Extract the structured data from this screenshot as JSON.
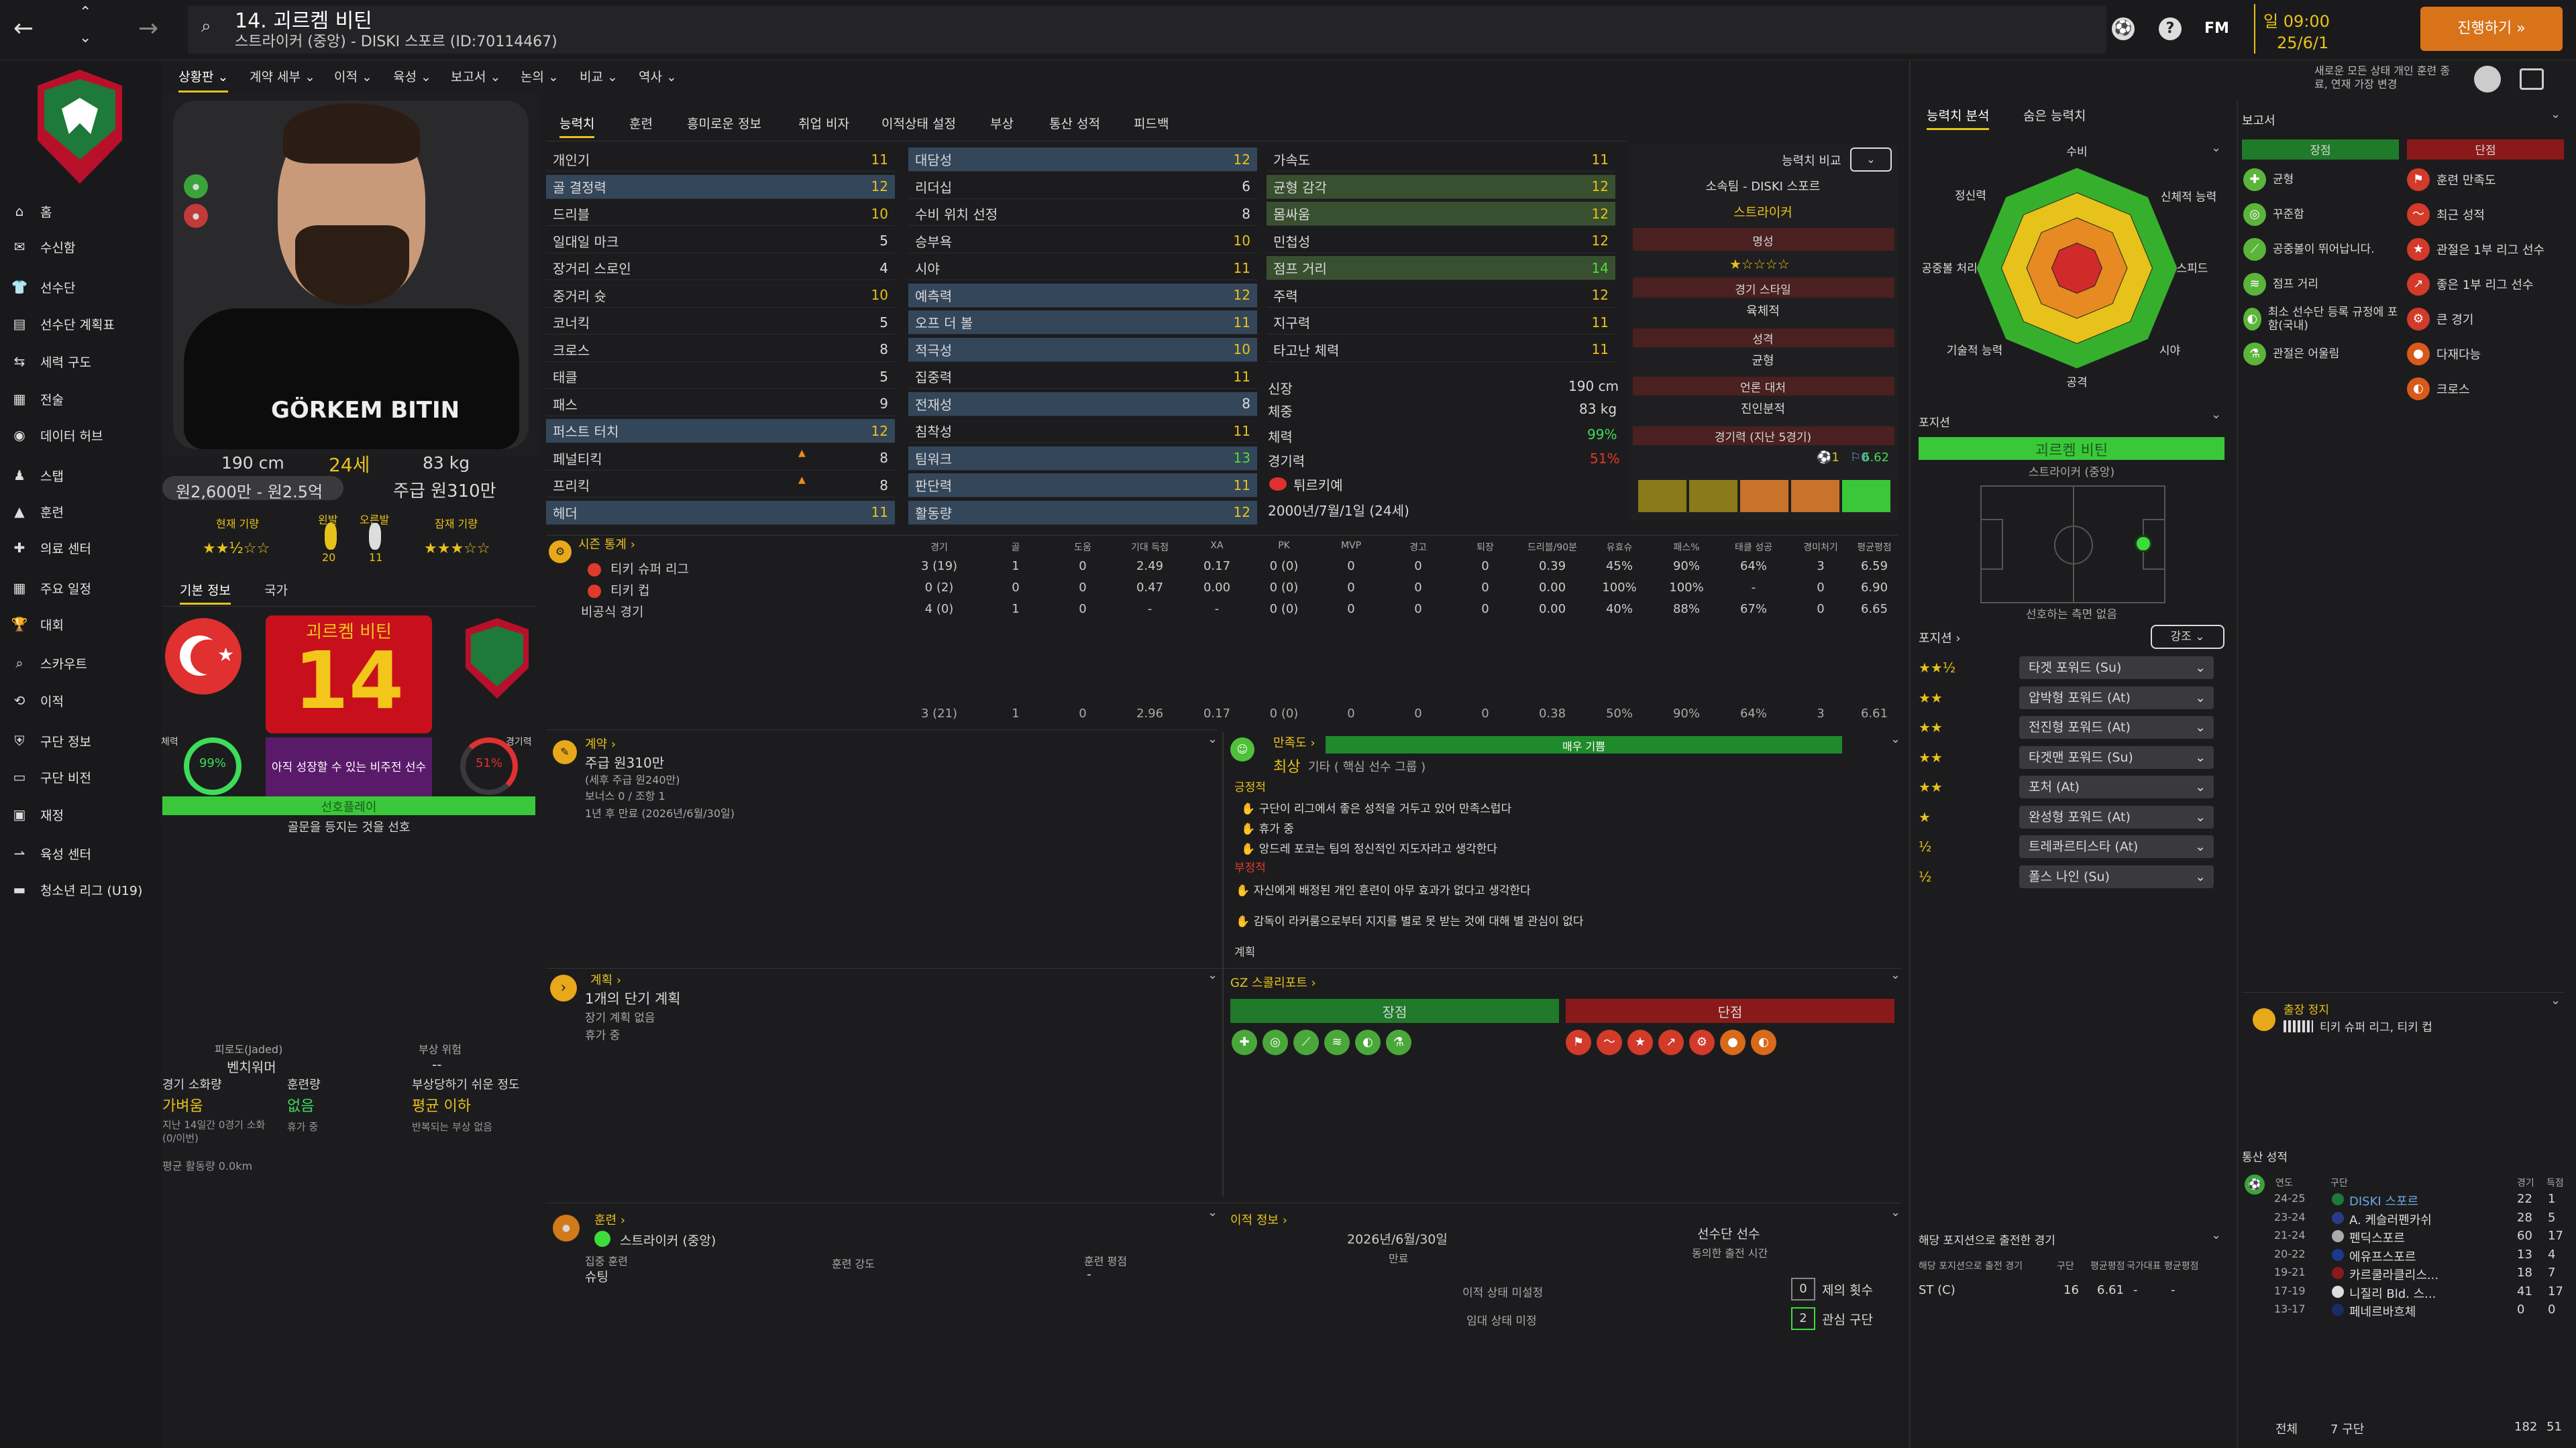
{
  "topbar": {
    "title": "14. 괴르켐 비틴",
    "subtitle": "스트라이커 (중앙) - DISKI 스포르 (ID:70114467)",
    "time": "일 09:00",
    "date": "25/6/1",
    "continue": "진행하기",
    "fm_label": "FM",
    "notice": "새로운 모든 상태 개인 훈련 종료, 연재 가장 변경"
  },
  "sidebar": {
    "items": [
      {
        "label": "홈",
        "icon": "home-icon"
      },
      {
        "label": "수신함",
        "icon": "inbox-icon"
      },
      {
        "label": "선수단",
        "icon": "squad-icon"
      },
      {
        "label": "선수단 계획표",
        "icon": "plan-icon"
      },
      {
        "label": "세력 구도",
        "icon": "dynamics-icon"
      },
      {
        "label": "전술",
        "icon": "tactics-icon"
      },
      {
        "label": "데이터 허브",
        "icon": "data-icon"
      },
      {
        "label": "스탭",
        "icon": "staff-icon"
      },
      {
        "label": "훈련",
        "icon": "training-icon"
      },
      {
        "label": "의료 센터",
        "icon": "medical-icon"
      },
      {
        "label": "주요 일정",
        "icon": "calendar-icon"
      },
      {
        "label": "대회",
        "icon": "trophy-icon"
      },
      {
        "label": "스카우트",
        "icon": "scout-icon"
      },
      {
        "label": "이적",
        "icon": "transfer-icon"
      },
      {
        "label": "구단 정보",
        "icon": "club-icon"
      },
      {
        "label": "구단 비전",
        "icon": "vision-icon"
      },
      {
        "label": "재정",
        "icon": "finance-icon"
      },
      {
        "label": "육성 센터",
        "icon": "youth-icon"
      },
      {
        "label": "청소년 리그 (U19)",
        "icon": "u19-icon"
      }
    ]
  },
  "nav": [
    "상황판",
    "계약 세부",
    "이적",
    "육성",
    "보고서",
    "논의",
    "비교",
    "역사"
  ],
  "profile": {
    "height": "190 cm",
    "age": "24세",
    "weight": "83 kg",
    "value": "원2,600만 - 원2.5억",
    "wage": "주급 원310만",
    "current_ability": "현재 기량",
    "potential": "잠재 기량",
    "right_foot": "오른발",
    "left_foot": "왼발",
    "right_foot_val": "11",
    "left_foot_val": "20",
    "shirt_name": "GÖRKEM BITIN",
    "tabs": [
      "기본 정보",
      "국가"
    ],
    "card_name": "괴르켐 비틴",
    "card_number": "14",
    "fitness": "99%",
    "fitness_label": "체력",
    "match_load": "51%",
    "match_load_label": "경기력",
    "card_note": "아직 성장할 수 있는 비주전 선수",
    "role_label": "선호플레이",
    "pref": "골문을 등지는 것을 선호"
  },
  "side_stats": {
    "jaded_label": "피로도(Jaded)",
    "jaded_val": "벤치워머",
    "injury_label": "부상 위험",
    "injury_val": "--",
    "match_label": "경기 소화량",
    "match_val": "가벼움",
    "match_sub": "지난 14일간 0경기 소화(0/이번)",
    "training_label": "훈련량",
    "training_val": "없음",
    "training_sub": "휴가 중",
    "injury2_label": "부상당하기 쉬운 정도",
    "injury2_val": "평균 이하",
    "injury2_sub": "반복되는 부상 없음",
    "distance": "평균 활동량 0.0km"
  },
  "tabs": [
    "능력치",
    "훈련",
    "흥미로운 정보",
    "취업 비자",
    "이적상태 설정",
    "부상",
    "통산 성적",
    "피드백"
  ],
  "tech": [
    [
      "개인기",
      "11"
    ],
    [
      "골 결정력",
      "12"
    ],
    [
      "드리블",
      "10"
    ],
    [
      "일대일 마크",
      "5"
    ],
    [
      "장거리 스로인",
      "4"
    ],
    [
      "중거리 슛",
      "10"
    ],
    [
      "코너킥",
      "5"
    ],
    [
      "크로스",
      "8"
    ],
    [
      "태클",
      "5"
    ],
    [
      "패스",
      "9"
    ],
    [
      "퍼스트 터치",
      "12"
    ],
    [
      "페널티킥",
      "8"
    ],
    [
      "프리킥",
      "8"
    ],
    [
      "헤더",
      "11"
    ]
  ],
  "mental": [
    [
      "대담성",
      "12"
    ],
    [
      "리더십",
      "6"
    ],
    [
      "수비 위치 선정",
      "8"
    ],
    [
      "승부욕",
      "10"
    ],
    [
      "시야",
      "11"
    ],
    [
      "예측력",
      "12"
    ],
    [
      "오프 더 볼",
      "11"
    ],
    [
      "적극성",
      "10"
    ],
    [
      "집중력",
      "11"
    ],
    [
      "전재성",
      "8"
    ],
    [
      "침착성",
      "11"
    ],
    [
      "팀워크",
      "13"
    ],
    [
      "판단력",
      "11"
    ],
    [
      "활동량",
      "12"
    ]
  ],
  "physical": [
    [
      "가속도",
      "11"
    ],
    [
      "균형 감각",
      "12"
    ],
    [
      "몸싸움",
      "12"
    ],
    [
      "민첩성",
      "12"
    ],
    [
      "점프 거리",
      "14"
    ],
    [
      "주력",
      "12"
    ],
    [
      "지구력",
      "11"
    ],
    [
      "타고난 체력",
      "11"
    ]
  ],
  "bio": {
    "height_label": "신장",
    "height": "190 cm",
    "weight_label": "체중",
    "weight": "83 kg",
    "fitness_label": "체력",
    "fitness": "99%",
    "match_label": "경기력",
    "match": "51%",
    "nation": "튀르키예",
    "dob": "2000년/7월/1일 (24세)"
  },
  "compare": {
    "btn": "능력치 비교",
    "club": "소속팀 - DISKI 스포르",
    "pos": "스트라이커",
    "rep_label": "명성",
    "style_label": "경기 스타일",
    "style": "육체적",
    "pers_label": "성격",
    "pers": "균형",
    "media_label": "언론 대처",
    "media": "진인분적",
    "recent_label": "경기력 (지난 5경기)",
    "recent_goals": "1",
    "recent_assists": "0",
    "recent_avg": "6.62"
  },
  "season": {
    "header": "시즌 통계",
    "cols": [
      "경기",
      "골",
      "도움",
      "기대 득점",
      "XA",
      "PK",
      "MVP",
      "경고",
      "퇴장",
      "드리블/90분",
      "유효슈",
      "패스%",
      "태클 성공",
      "경미처기",
      "평균평점"
    ],
    "rows": [
      {
        "name": "티키 슈퍼 리그",
        "vals": [
          "3 (19)",
          "1",
          "0",
          "2.49",
          "0.17",
          "0 (0)",
          "0",
          "0",
          "0",
          "0.39",
          "45%",
          "90%",
          "64%",
          "3",
          "6.59"
        ]
      },
      {
        "name": "티키 컵",
        "vals": [
          "0 (2)",
          "0",
          "0",
          "0.47",
          "0.00",
          "0 (0)",
          "0",
          "0",
          "0",
          "0.00",
          "100%",
          "100%",
          "-",
          "0",
          "6.90"
        ]
      },
      {
        "name": "비공식 경기",
        "vals": [
          "4 (0)",
          "1",
          "0",
          "-",
          "-",
          "0 (0)",
          "0",
          "0",
          "0",
          "0.00",
          "40%",
          "88%",
          "67%",
          "0",
          "6.65"
        ]
      }
    ],
    "total": [
      "3 (21)",
      "1",
      "0",
      "2.96",
      "0.17",
      "0 (0)",
      "0",
      "0",
      "0",
      "0.38",
      "50%",
      "90%",
      "64%",
      "3",
      "6.61"
    ]
  },
  "contract": {
    "header": "계약",
    "wage": "주급 원310만",
    "wage_sub": "(세후 주급 원240만)",
    "bonus": "보너스 0 / 조항 1",
    "expiry": "1년 후 만료 (2026년/6월/30일)"
  },
  "happiness": {
    "header": "만족도",
    "status": "매우 기쁨",
    "role": "최상",
    "role_sub": "기타 ( 핵심 선수 그룹 )",
    "pos_label": "긍정적",
    "positives": [
      "구단이 리그에서 좋은 성적을 거두고 있어 만족스럽다",
      "휴가 중",
      "앙드레 포코는 팀의 정신적인 지도자라고 생각한다"
    ],
    "neg_label": "부정적",
    "negatives": [
      "자신에게 배정된 개인 훈련이 아무 효과가 없다고 생각한다",
      "감독이 라커룸으로부터 지지를 별로 못 받는 것에 대해 별 관심이 없다"
    ],
    "footer": "계획"
  },
  "plans": {
    "header": "계획",
    "short": "1개의 단기 계획",
    "long": "장기 계획 없음",
    "holiday": "휴가 중"
  },
  "scout": {
    "header": "GZ 스콜리포트",
    "pros": "장점",
    "cons": "단점"
  },
  "training": {
    "header": "훈련",
    "pos": "스트라이커 (중앙)",
    "focus_label": "집중 훈련",
    "focus": "슈팅",
    "intensity_label": "훈련 강도",
    "rating_label": "훈련 평점",
    "rating": "-"
  },
  "transfer": {
    "header": "이적 정보",
    "date": "2026년/6월/30일",
    "expiry": "만료",
    "status": "선수단 선수",
    "status_sub": "동의한 출전 시간",
    "not_set": "이적 상태 미설정",
    "not_set2": "임대 상태 미정",
    "offers": "제의 횟수",
    "offers_val": "0",
    "interest": "관심 구단",
    "interest_val": "2"
  },
  "analysis": {
    "tabs": [
      "능력치 분석",
      "숨은 능력치"
    ],
    "labels": [
      "수비",
      "신체적 능력",
      "스피드",
      "시야",
      "공격",
      "기술적 능력",
      "공중볼 처리",
      "정신력"
    ],
    "values": [
      0.35,
      0.6,
      0.62,
      0.5,
      0.7,
      0.55,
      0.65,
      0.6
    ]
  },
  "position": {
    "header": "포지션",
    "name": "괴르켐 비틴",
    "role": "스트라이커 (중앙)",
    "pref": "선호하는 측면 없음",
    "roles_header": "포지션",
    "strong": "강조",
    "roles": [
      {
        "name": "타겟 포워드 (Su)",
        "stars": "★★½"
      },
      {
        "name": "압박형 포워드 (At)",
        "stars": "★★"
      },
      {
        "name": "전진형 포워드 (At)",
        "stars": "★★"
      },
      {
        "name": "타겟맨 포워드 (Su)",
        "stars": "★★"
      },
      {
        "name": "포처 (At)",
        "stars": "★★"
      },
      {
        "name": "완성형 포워드 (At)",
        "stars": "★"
      },
      {
        "name": "트레콰르티스타 (At)",
        "stars": "½"
      },
      {
        "name": "폴스 나인 (Su)",
        "stars": "½"
      }
    ],
    "played_header": "해당 포지션으로 출전한 경기",
    "played_cols": [
      "해당 포지션으로 출전 경기",
      "구단",
      "평균평점",
      "국가대표",
      "평균평점"
    ],
    "played_row": [
      "ST (C)",
      "16",
      "6.61",
      "-",
      "-"
    ]
  },
  "report": {
    "header": "보고서",
    "pros": "장점",
    "cons": "단점",
    "pros_items": [
      {
        "t": "균형",
        "c": "#5bb53a"
      },
      {
        "t": "꾸준함",
        "c": "#5bb53a"
      },
      {
        "t": "공중볼이 뛰어납니다.",
        "c": "#5bb53a"
      },
      {
        "t": "점프 거리",
        "c": "#5bb53a"
      },
      {
        "t": "최소 선수단 등록 규정에 포함(국내)",
        "c": "#5bb53a"
      },
      {
        "t": "관절은 어울림",
        "c": "#5bb53a"
      }
    ],
    "cons_items": [
      {
        "t": "훈련 만족도",
        "c": "#d23a2a"
      },
      {
        "t": "최근 성적",
        "c": "#d23a2a"
      },
      {
        "t": "관절은 1부 리그 선수",
        "c": "#d23a2a"
      },
      {
        "t": "좋은 1부 리그 선수",
        "c": "#d23a2a"
      },
      {
        "t": "큰 경기",
        "c": "#d23a2a"
      },
      {
        "t": "다재다능",
        "c": "#d85a1a"
      },
      {
        "t": "크로스",
        "c": "#d85a1a"
      }
    ]
  },
  "suspension": {
    "header": "출장 정지",
    "text": "티키 슈퍼 리그, 티키 컵"
  },
  "career": {
    "header": "통산 성적",
    "cols": [
      "연도",
      "구단",
      "경기",
      "득점"
    ],
    "rows": [
      [
        "24-25",
        "DISKI 스포르",
        "22",
        "1"
      ],
      [
        "23-24",
        "A. 케슬러펜카쉬",
        "28",
        "5"
      ],
      [
        "21-24",
        "펜딕스포르",
        "60",
        "17"
      ],
      [
        "20-22",
        "에유프스포르",
        "13",
        "4"
      ],
      [
        "19-21",
        "카르쿨라클리스...",
        "18",
        "7"
      ],
      [
        "17-19",
        "니질리 Bld. 스...",
        "41",
        "17"
      ],
      [
        "13-17",
        "페네르바흐체",
        "0",
        "0"
      ]
    ],
    "total_label": "전체",
    "total_clubs": "7 구단",
    "total_games": "182",
    "total_goals": "51"
  },
  "colors": {
    "accent": "#e7c21a",
    "green": "#4fdc3d",
    "red": "#e03a2a",
    "panel": "#232326"
  }
}
